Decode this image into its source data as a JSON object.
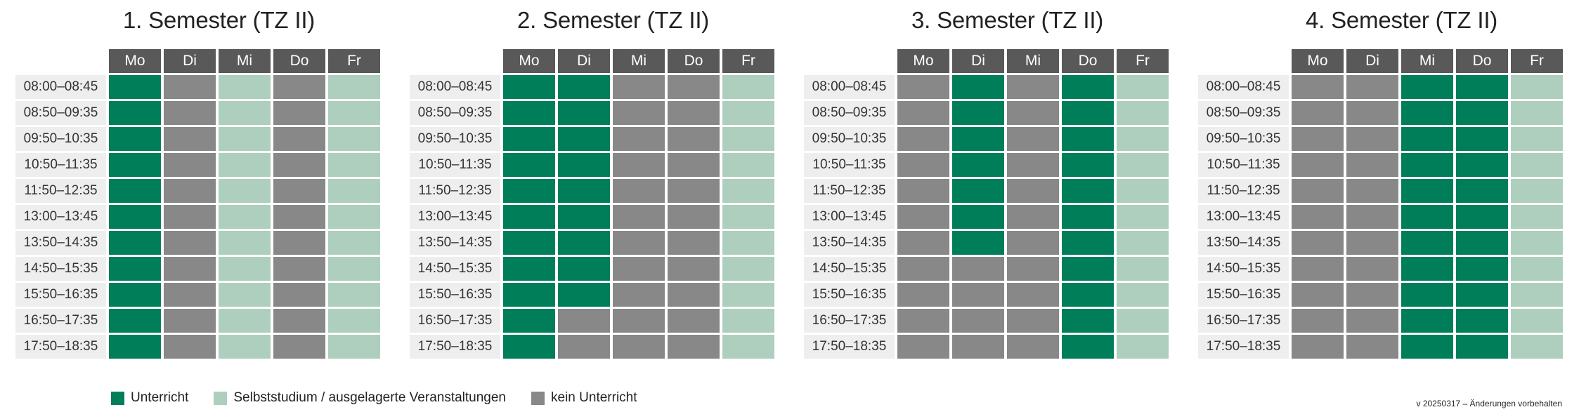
{
  "days": [
    "Mo",
    "Di",
    "Mi",
    "Do",
    "Fr"
  ],
  "times": [
    "08:00–08:45",
    "08:50–09:35",
    "09:50–10:35",
    "10:50–11:35",
    "11:50–12:35",
    "13:00–13:45",
    "13:50–14:35",
    "14:50–15:35",
    "15:50–16:35",
    "16:50–17:35",
    "17:50–18:35"
  ],
  "semesters": [
    {
      "title": "1. Semester (TZ II)",
      "schedule": [
        "uksks",
        "uksks",
        "uksks",
        "uksks",
        "uksks",
        "uksks",
        "uksks",
        "uksks",
        "uksks",
        "uksks",
        "uksks"
      ]
    },
    {
      "title": "2. Semester (TZ II)",
      "schedule": [
        "uukks",
        "uukks",
        "uukks",
        "uukks",
        "uukks",
        "uukks",
        "uukks",
        "uukks",
        "uukks",
        "ukkks",
        "ukkks"
      ]
    },
    {
      "title": "3. Semester (TZ II)",
      "schedule": [
        "kukus",
        "kukus",
        "kukus",
        "kukus",
        "kukus",
        "kukus",
        "kukus",
        "kkkus",
        "kkkus",
        "kkkus",
        "kkkus"
      ]
    },
    {
      "title": "4. Semester (TZ II)",
      "schedule": [
        "kkuus",
        "kkuus",
        "kkuus",
        "kkuus",
        "kkuus",
        "kkuus",
        "kkuus",
        "kkuus",
        "kkuus",
        "kkuus",
        "kkuus"
      ]
    }
  ],
  "legend": [
    {
      "key": "u",
      "label": "Unterricht",
      "color": "#007e5a"
    },
    {
      "key": "s",
      "label": "Selbststudium / ausgelagerte Veranstaltungen",
      "color": "#aecfbe"
    },
    {
      "key": "k",
      "label": "kein Unterricht",
      "color": "#888888"
    }
  ],
  "version_note": "v 20250317 – Änderungen vorbehalten",
  "colors": {
    "unterricht": "#007e5a",
    "selbststudium": "#aecfbe",
    "kein_unterricht": "#888888",
    "header": "#595959",
    "time_bg": "#eeeeee"
  }
}
